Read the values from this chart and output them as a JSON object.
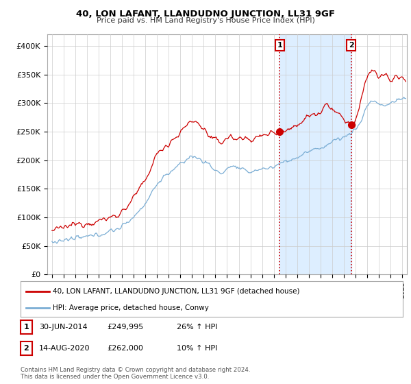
{
  "title": "40, LON LAFANT, LLANDUDNO JUNCTION, LL31 9GF",
  "subtitle": "Price paid vs. HM Land Registry's House Price Index (HPI)",
  "ylim": [
    0,
    420000
  ],
  "xlim_start": 1994.6,
  "xlim_end": 2025.4,
  "background_color": "#ffffff",
  "grid_color": "#cccccc",
  "red_line_color": "#cc0000",
  "blue_line_color": "#7aadd4",
  "shade_color": "#ddeeff",
  "dashed_line_color": "#cc0000",
  "marker1_date": 2014.5,
  "marker1_price": 249995,
  "marker2_date": 2020.62,
  "marker2_price": 262000,
  "legend_label_red": "40, LON LAFANT, LLANDUDNO JUNCTION, LL31 9GF (detached house)",
  "legend_label_blue": "HPI: Average price, detached house, Conwy",
  "footer1": "Contains HM Land Registry data © Crown copyright and database right 2024.",
  "footer2": "This data is licensed under the Open Government Licence v3.0.",
  "table_row1": [
    "1",
    "30-JUN-2014",
    "£249,995",
    "26% ↑ HPI"
  ],
  "table_row2": [
    "2",
    "14-AUG-2020",
    "£262,000",
    "10% ↑ HPI"
  ]
}
